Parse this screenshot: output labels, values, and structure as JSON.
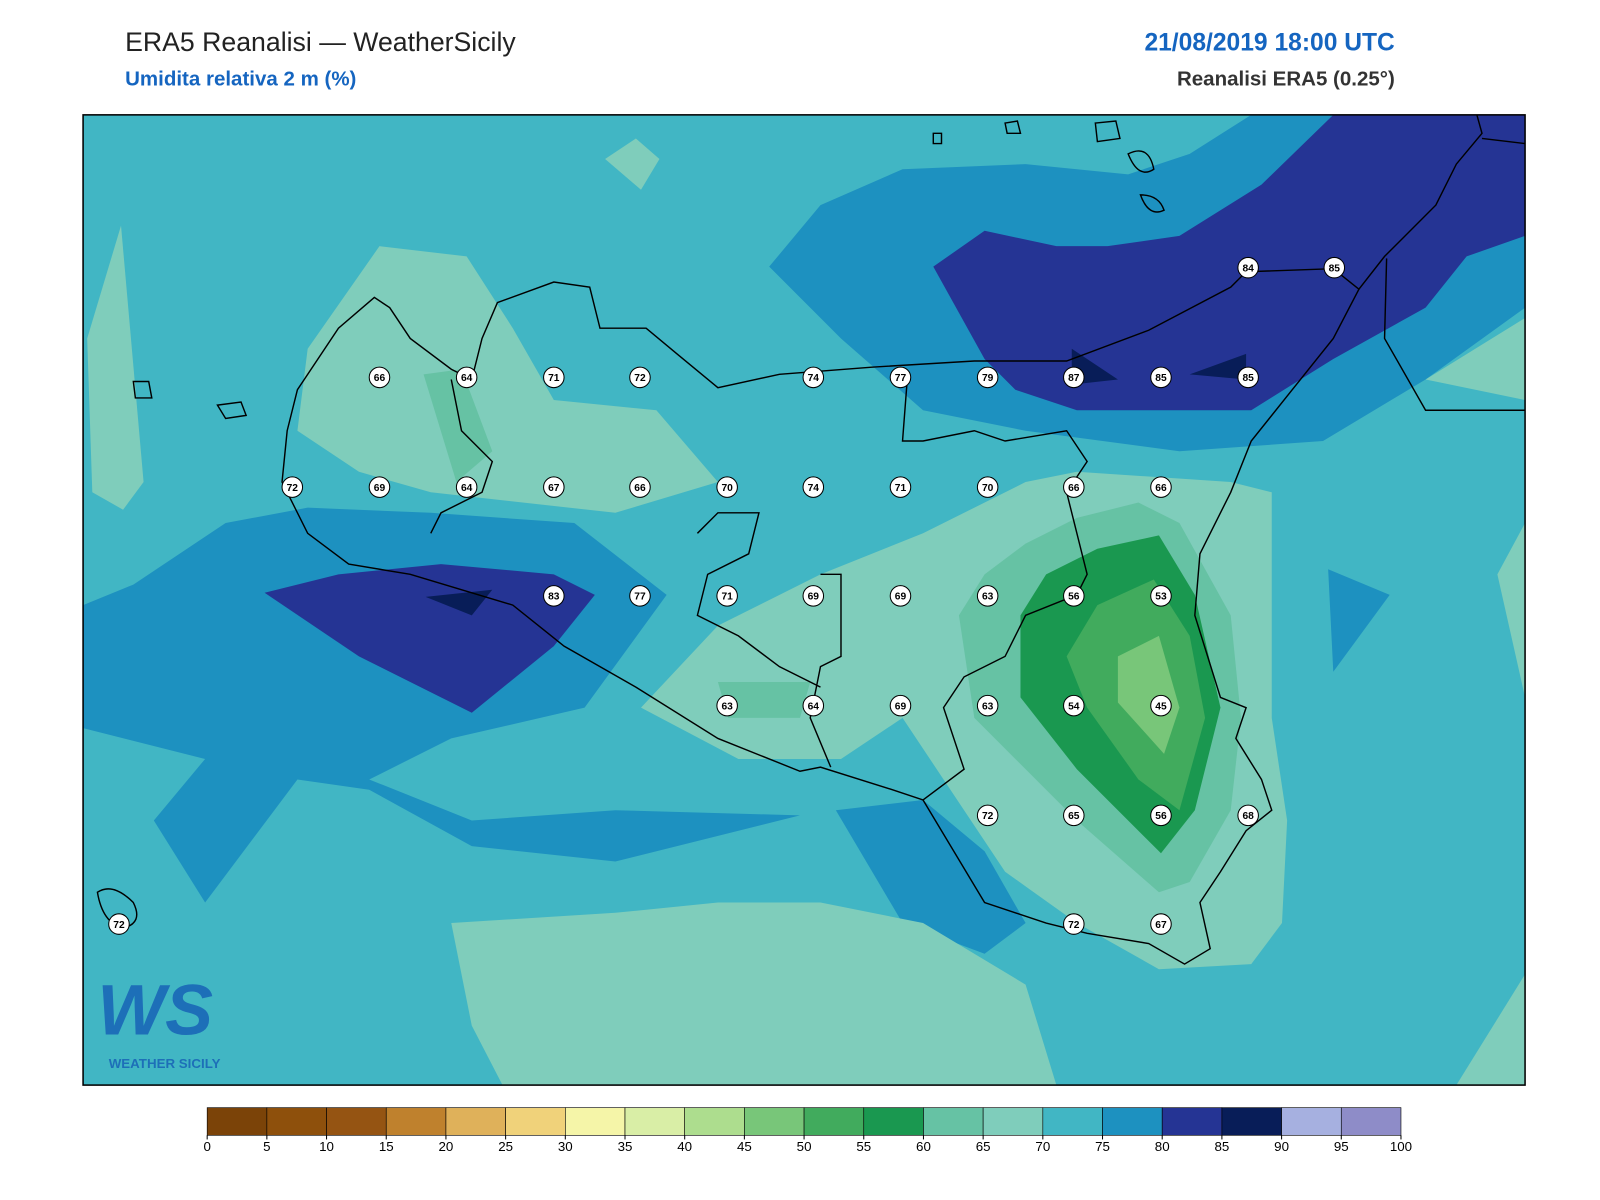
{
  "header": {
    "title": "ERA5 Reanalisi — WeatherSicily",
    "subtitle": "Umidita relativa 2 m (%)",
    "datetime": "21/08/2019 18:00 UTC",
    "source": "Reanalisi ERA5 (0.25°)"
  },
  "stations": [
    84,
    85,
    66,
    64,
    71,
    72,
    74,
    77,
    79,
    87,
    85,
    85,
    72,
    69,
    64,
    67,
    66,
    70,
    74,
    71,
    70,
    66,
    66,
    83,
    77,
    71,
    69,
    69,
    63,
    56,
    53,
    63,
    64,
    69,
    63,
    54,
    45,
    72,
    65,
    56,
    68,
    72,
    72,
    67
  ],
  "colorbar": {
    "ticks": [
      0,
      5,
      10,
      15,
      20,
      25,
      30,
      35,
      40,
      45,
      50,
      55,
      60,
      65,
      70,
      75,
      80,
      85,
      90,
      95,
      100
    ],
    "colors": [
      "#7b4308",
      "#8e500c",
      "#955412",
      "#bf812d",
      "#dfb15a",
      "#f0d27a",
      "#f5f5a8",
      "#d9eea6",
      "#addd8e",
      "#78c679",
      "#41ab5d",
      "#1a9850",
      "#66c2a4",
      "#7fcdbb",
      "#41b6c4",
      "#1d91c0",
      "#253494",
      "#081d58",
      "#a6b0e0",
      "#8e8cc8"
    ]
  },
  "logo": {
    "mark": "WS",
    "text": "WEATHER SICILY"
  }
}
